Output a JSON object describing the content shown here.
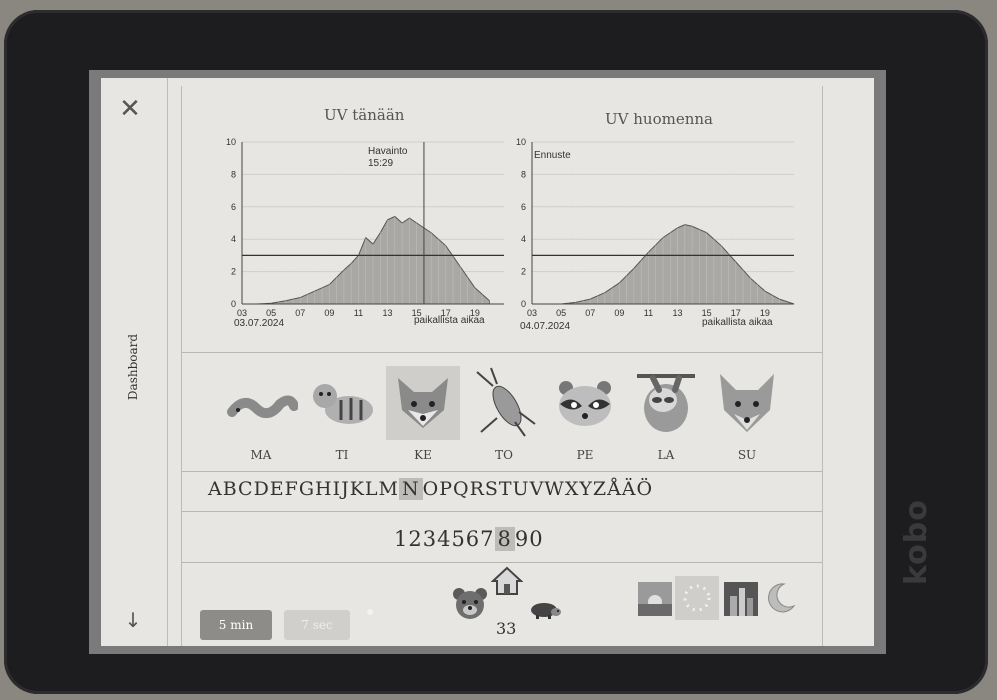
{
  "device": {
    "brand": "kobo"
  },
  "sidebar": {
    "label": "Dashboard",
    "close_icon": "close-icon",
    "down_icon": "arrow-down-icon"
  },
  "uv_today": {
    "title": "UV tänään",
    "date": "03.07.2024",
    "axis_note": "paikallista aikaa",
    "marker_label": "Havainto",
    "marker_time": "15:29"
  },
  "uv_tomorrow": {
    "title": "UV huomenna",
    "date": "04.07.2024",
    "axis_note": "paikallista aikaa",
    "marker_label": "Ennuste"
  },
  "chart_data": [
    {
      "type": "area",
      "title": "UV tänään",
      "x_ticks": [
        "03",
        "05",
        "07",
        "09",
        "11",
        "13",
        "15",
        "17",
        "19"
      ],
      "y_ticks": [
        "0",
        "2",
        "4",
        "6",
        "8",
        "10"
      ],
      "ylim": [
        0,
        10
      ],
      "threshold": 3,
      "x": [
        4,
        5,
        6,
        7,
        8,
        9,
        10,
        10.5,
        11,
        11.5,
        12,
        12.5,
        13,
        13.5,
        14,
        14.5,
        15,
        15.5,
        16,
        17,
        18,
        19,
        20
      ],
      "values": [
        0,
        0.05,
        0.2,
        0.4,
        0.8,
        1.2,
        2.1,
        2.5,
        3.0,
        4.1,
        3.7,
        4.4,
        5.2,
        5.4,
        5.0,
        5.3,
        5.0,
        4.7,
        4.4,
        3.6,
        2.3,
        1.0,
        0.2
      ]
    },
    {
      "type": "area",
      "title": "UV huomenna",
      "x_ticks": [
        "03",
        "05",
        "07",
        "09",
        "11",
        "13",
        "15",
        "17",
        "19"
      ],
      "y_ticks": [
        "0",
        "2",
        "4",
        "6",
        "8",
        "10"
      ],
      "ylim": [
        0,
        10
      ],
      "threshold": 3,
      "x": [
        5,
        6,
        7,
        8,
        9,
        10,
        11,
        12,
        13,
        13.5,
        14,
        15,
        16,
        17,
        18,
        19,
        20,
        21
      ],
      "values": [
        0,
        0.1,
        0.3,
        0.7,
        1.3,
        2.2,
        3.2,
        4.1,
        4.7,
        4.9,
        4.8,
        4.4,
        3.6,
        2.6,
        1.6,
        0.8,
        0.3,
        0
      ]
    }
  ],
  "days": [
    "MA",
    "TI",
    "KE",
    "TO",
    "PE",
    "LA",
    "SU"
  ],
  "animals": [
    "worm-icon",
    "tiger-icon",
    "fox-icon",
    "cricket-icon",
    "raccoon-icon",
    "sloth-icon",
    "wolf-icon"
  ],
  "selected_day": 2,
  "alphabet": {
    "before": "ABCDEFGHIJKLM",
    "selected": "N",
    "after": "OPQRSTUVWXYZÅÄÖ"
  },
  "digits": {
    "before": "1234567",
    "selected": "8",
    "after": "90"
  },
  "bottom": {
    "btn_a": "5 min",
    "btn_b": "7 sec",
    "count": "33"
  }
}
